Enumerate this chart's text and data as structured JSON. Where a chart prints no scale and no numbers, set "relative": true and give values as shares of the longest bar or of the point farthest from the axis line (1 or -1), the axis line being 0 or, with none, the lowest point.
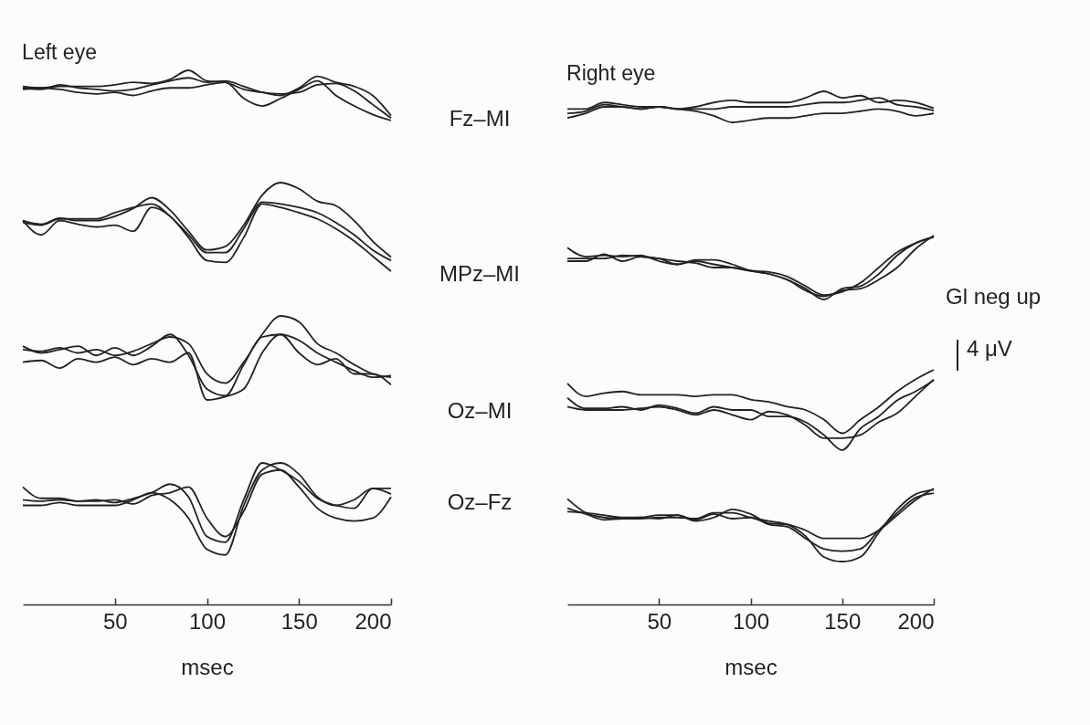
{
  "chart_data": [
    {
      "type": "line",
      "title": "Left eye",
      "x": [
        0,
        10,
        20,
        30,
        40,
        50,
        60,
        70,
        80,
        90,
        100,
        110,
        120,
        130,
        140,
        150,
        160,
        170,
        180,
        190,
        200
      ],
      "relative": true,
      "tick_labels": false,
      "annotations": [
        "Fz–MI"
      ],
      "series": [
        {
          "color": "#222222",
          "values": [
            0.68,
            0.65,
            0.68,
            0.68,
            0.68,
            0.71,
            0.76,
            0.74,
            0.82,
            1,
            0.79,
            0.76,
            0.62,
            0.56,
            0.5,
            0.65,
            0.88,
            0.76,
            0.68,
            0.5,
            0.1
          ]
        },
        {
          "color": "#222222",
          "values": [
            0.65,
            0.62,
            0.71,
            0.65,
            0.62,
            0.59,
            0.62,
            0.71,
            0.79,
            0.85,
            0.76,
            0.79,
            0.68,
            0.56,
            0.53,
            0.56,
            0.71,
            0.74,
            0.59,
            0.32,
            0.05
          ]
        },
        {
          "color": "#222222",
          "values": [
            0.62,
            0.65,
            0.62,
            0.56,
            0.53,
            0.56,
            0.5,
            0.59,
            0.65,
            0.65,
            0.71,
            0.76,
            0.44,
            0.29,
            0.44,
            0.62,
            0.79,
            0.5,
            0.29,
            0.12,
            0
          ]
        }
      ]
    },
    {
      "type": "line",
      "title": "Right eye",
      "x": [
        0,
        10,
        20,
        30,
        40,
        50,
        60,
        70,
        80,
        90,
        100,
        110,
        120,
        130,
        140,
        150,
        160,
        170,
        180,
        190,
        200
      ],
      "relative": true,
      "tick_labels": false,
      "series": [
        {
          "color": "#222222",
          "values": [
            0.43,
            0.43,
            0.64,
            0.57,
            0.5,
            0.5,
            0.43,
            0.5,
            0.64,
            0.71,
            0.64,
            0.64,
            0.64,
            0.79,
            1,
            0.79,
            0.86,
            0.64,
            0.71,
            0.64,
            0.45
          ]
        },
        {
          "color": "#222222",
          "values": [
            0.29,
            0.36,
            0.57,
            0.5,
            0.43,
            0.5,
            0.43,
            0.43,
            0.43,
            0.5,
            0.5,
            0.5,
            0.5,
            0.57,
            0.64,
            0.64,
            0.71,
            0.79,
            0.57,
            0.5,
            0.38
          ]
        },
        {
          "color": "#222222",
          "values": [
            0.14,
            0.29,
            0.5,
            0.5,
            0.43,
            0.5,
            0.43,
            0.36,
            0.21,
            0,
            0.07,
            0.14,
            0.14,
            0.21,
            0.29,
            0.29,
            0.36,
            0.43,
            0.36,
            0.21,
            0.29
          ]
        }
      ]
    },
    {
      "type": "line",
      "x": [
        0,
        10,
        20,
        30,
        40,
        50,
        60,
        70,
        80,
        90,
        100,
        110,
        120,
        130,
        140,
        150,
        160,
        170,
        180,
        190,
        200
      ],
      "relative": true,
      "tick_labels": false,
      "annotations": [
        "MPz–MI"
      ],
      "series": [
        {
          "color": "#222222",
          "values": [
            0.57,
            0.53,
            0.6,
            0.57,
            0.57,
            0.62,
            0.71,
            0.83,
            0.69,
            0.45,
            0.24,
            0.28,
            0.52,
            0.86,
            1,
            0.93,
            0.79,
            0.74,
            0.57,
            0.34,
            0.16
          ]
        },
        {
          "color": "#222222",
          "values": [
            0.55,
            0.52,
            0.59,
            0.59,
            0.59,
            0.66,
            0.72,
            0.76,
            0.62,
            0.41,
            0.21,
            0.21,
            0.48,
            0.78,
            0.76,
            0.72,
            0.66,
            0.55,
            0.41,
            0.24,
            0.12
          ]
        },
        {
          "color": "#222222",
          "values": [
            0.57,
            0.41,
            0.57,
            0.53,
            0.5,
            0.52,
            0.45,
            0.72,
            0.62,
            0.38,
            0.12,
            0.1,
            0.38,
            0.76,
            0.72,
            0.66,
            0.59,
            0.48,
            0.34,
            0.17,
            0
          ]
        }
      ]
    },
    {
      "type": "line",
      "x": [
        0,
        10,
        20,
        30,
        40,
        50,
        60,
        70,
        80,
        90,
        100,
        110,
        120,
        130,
        140,
        150,
        160,
        170,
        180,
        190,
        200
      ],
      "relative": true,
      "tick_labels": false,
      "annotations": [
        "Gl neg up",
        "4 μV"
      ],
      "series": [
        {
          "color": "#222222",
          "values": [
            0.81,
            0.67,
            0.69,
            0.67,
            0.69,
            0.6,
            0.55,
            0.6,
            0.55,
            0.5,
            0.45,
            0.43,
            0.36,
            0.21,
            0.07,
            0.12,
            0.26,
            0.5,
            0.74,
            0.88,
            0.98
          ]
        },
        {
          "color": "#222222",
          "values": [
            0.64,
            0.64,
            0.64,
            0.69,
            0.67,
            0.64,
            0.6,
            0.57,
            0.5,
            0.5,
            0.45,
            0.4,
            0.31,
            0.17,
            0,
            0.17,
            0.21,
            0.4,
            0.69,
            0.88,
            0.98
          ]
        },
        {
          "color": "#222222",
          "values": [
            0.6,
            0.6,
            0.71,
            0.6,
            0.67,
            0.64,
            0.55,
            0.62,
            0.62,
            0.55,
            0.45,
            0.4,
            0.31,
            0.14,
            0.05,
            0.14,
            0.17,
            0.31,
            0.5,
            0.79,
            1
          ]
        }
      ]
    },
    {
      "type": "line",
      "x": [
        0,
        10,
        20,
        30,
        40,
        50,
        60,
        70,
        80,
        90,
        100,
        110,
        120,
        130,
        140,
        150,
        160,
        170,
        180,
        190,
        200
      ],
      "relative": true,
      "tick_labels": false,
      "annotations": [
        "Oz–MI"
      ],
      "series": [
        {
          "color": "#222222",
          "values": [
            0.6,
            0.58,
            0.62,
            0.56,
            0.6,
            0.53,
            0.58,
            0.67,
            0.75,
            0.67,
            0.31,
            0.2,
            0.45,
            0.78,
            1,
            0.93,
            0.67,
            0.56,
            0.42,
            0.31,
            0.27
          ]
        },
        {
          "color": "#222222",
          "values": [
            0.64,
            0.56,
            0.6,
            0.64,
            0.53,
            0.62,
            0.53,
            0.64,
            0.78,
            0.53,
            0.13,
            0.05,
            0.42,
            0.75,
            0.78,
            0.71,
            0.56,
            0.45,
            0.35,
            0.27,
            0.29
          ]
        },
        {
          "color": "#222222",
          "values": [
            0.45,
            0.47,
            0.38,
            0.49,
            0.45,
            0.51,
            0.42,
            0.49,
            0.45,
            0.56,
            0,
            0.04,
            0.13,
            0.56,
            0.78,
            0.56,
            0.42,
            0.49,
            0.31,
            0.31,
            0.18
          ]
        }
      ]
    },
    {
      "type": "line",
      "x": [
        0,
        10,
        20,
        30,
        40,
        50,
        60,
        70,
        80,
        90,
        100,
        110,
        120,
        130,
        140,
        150,
        160,
        170,
        180,
        190,
        200
      ],
      "relative": true,
      "tick_labels": false,
      "series": [
        {
          "color": "#222222",
          "values": [
            0.83,
            0.67,
            0.71,
            0.73,
            0.69,
            0.69,
            0.69,
            0.67,
            0.69,
            0.69,
            0.63,
            0.6,
            0.54,
            0.5,
            0.38,
            0.21,
            0.38,
            0.54,
            0.73,
            0.88,
            1
          ]
        },
        {
          "color": "#222222",
          "values": [
            0.65,
            0.52,
            0.52,
            0.54,
            0.5,
            0.56,
            0.52,
            0.46,
            0.54,
            0.5,
            0.5,
            0.42,
            0.42,
            0.35,
            0.19,
            0,
            0.27,
            0.42,
            0.62,
            0.73,
            0.87
          ]
        },
        {
          "color": "#222222",
          "values": [
            0.54,
            0.5,
            0.5,
            0.5,
            0.52,
            0.54,
            0.5,
            0.44,
            0.5,
            0.44,
            0.38,
            0.48,
            0.44,
            0.31,
            0.15,
            0.15,
            0.19,
            0.35,
            0.46,
            0.67,
            0.88
          ]
        }
      ]
    },
    {
      "type": "line",
      "x": [
        0,
        10,
        20,
        30,
        40,
        50,
        60,
        70,
        80,
        90,
        100,
        110,
        120,
        130,
        140,
        150,
        160,
        170,
        180,
        190,
        200
      ],
      "xlim": [
        0,
        200
      ],
      "xticks": [
        50,
        100,
        150,
        200
      ],
      "relative": true,
      "tick_labels": "x",
      "xlabel": "msec",
      "annotations": [
        "Oz–Fz"
      ],
      "series": [
        {
          "color": "#222222",
          "values": [
            0.83,
            0.75,
            0.75,
            0.73,
            0.74,
            0.72,
            0.75,
            0.79,
            0.85,
            0.76,
            0.48,
            0.44,
            0.74,
            1,
            0.95,
            0.87,
            0.75,
            0.7,
            0.68,
            0.82,
            0.82
          ]
        },
        {
          "color": "#222222",
          "values": [
            0.74,
            0.73,
            0.74,
            0.73,
            0.73,
            0.74,
            0.71,
            0.77,
            0.79,
            0.83,
            0.61,
            0.48,
            0.66,
            0.92,
            0.95,
            0.83,
            0.68,
            0.61,
            0.59,
            0.61,
            0.76
          ]
        },
        {
          "color": "#222222",
          "values": [
            0.7,
            0.7,
            0.72,
            0.7,
            0.7,
            0.7,
            0.74,
            0.79,
            0.74,
            0.61,
            0.39,
            0.35,
            0.7,
            0.95,
            1,
            0.92,
            0.76,
            0.7,
            0.74,
            0.82,
            0.78
          ]
        }
      ]
    },
    {
      "type": "line",
      "x": [
        0,
        10,
        20,
        30,
        40,
        50,
        60,
        70,
        80,
        90,
        100,
        110,
        120,
        130,
        140,
        150,
        160,
        170,
        180,
        190,
        200
      ],
      "xlim": [
        0,
        200
      ],
      "xticks": [
        50,
        100,
        150,
        200
      ],
      "relative": true,
      "tick_labels": "x",
      "xlabel": "msec",
      "series": [
        {
          "color": "#222222",
          "values": [
            0.91,
            0.79,
            0.75,
            0.74,
            0.75,
            0.74,
            0.77,
            0.72,
            0.75,
            0.82,
            0.78,
            0.7,
            0.69,
            0.64,
            0.57,
            0.57,
            0.57,
            0.64,
            0.77,
            0.9,
            1
          ]
        },
        {
          "color": "#222222",
          "values": [
            0.8,
            0.79,
            0.77,
            0.75,
            0.75,
            0.77,
            0.77,
            0.73,
            0.78,
            0.74,
            0.75,
            0.69,
            0.67,
            0.57,
            0.48,
            0.46,
            0.48,
            0.64,
            0.79,
            0.92,
            0.96
          ]
        },
        {
          "color": "#222222",
          "values": [
            0.83,
            0.78,
            0.73,
            0.74,
            0.74,
            0.75,
            0.75,
            0.74,
            0.79,
            0.79,
            0.75,
            0.72,
            0.69,
            0.59,
            0.41,
            0.37,
            0.41,
            0.62,
            0.82,
            0.95,
            0.99
          ]
        }
      ]
    }
  ]
}
